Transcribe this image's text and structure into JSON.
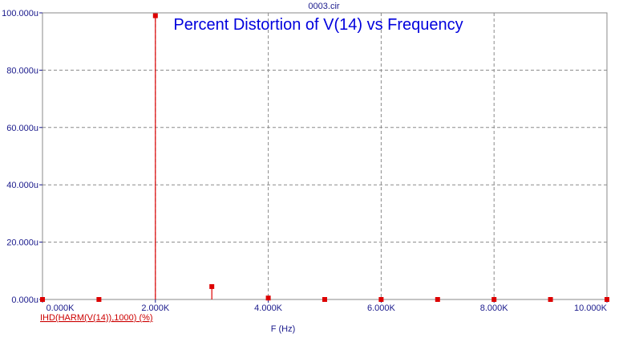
{
  "file_label": "0003.cir",
  "chart_data": {
    "type": "bar",
    "title": "Percent Distortion of V(14) vs Frequency",
    "xlabel": "F (Hz)",
    "ylabel": "",
    "series_label": "IHD(HARM(V(14)),1000) (%)",
    "xlim": [
      0,
      10000
    ],
    "ylim": [
      0,
      0.0001
    ],
    "x_ticks": [
      {
        "value": 0,
        "label": "0.000K"
      },
      {
        "value": 2000,
        "label": "2.000K"
      },
      {
        "value": 4000,
        "label": "4.000K"
      },
      {
        "value": 6000,
        "label": "6.000K"
      },
      {
        "value": 8000,
        "label": "8.000K"
      },
      {
        "value": 10000,
        "label": "10.000K"
      }
    ],
    "y_ticks": [
      {
        "value": 0,
        "label": "0.000u"
      },
      {
        "value": 2e-05,
        "label": "20.000u"
      },
      {
        "value": 4e-05,
        "label": "40.000u"
      },
      {
        "value": 6e-05,
        "label": "60.000u"
      },
      {
        "value": 8e-05,
        "label": "80.000u"
      },
      {
        "value": 0.0001,
        "label": "100.000u"
      }
    ],
    "grid": true,
    "series": [
      {
        "color": "#dd0000",
        "x": [
          0,
          1000,
          2000,
          3000,
          4000,
          5000,
          6000,
          7000,
          8000,
          9000,
          10000
        ],
        "values": [
          0,
          0,
          9.9e-05,
          4.5e-06,
          5e-07,
          0,
          0,
          0,
          0,
          0,
          0
        ]
      }
    ]
  }
}
